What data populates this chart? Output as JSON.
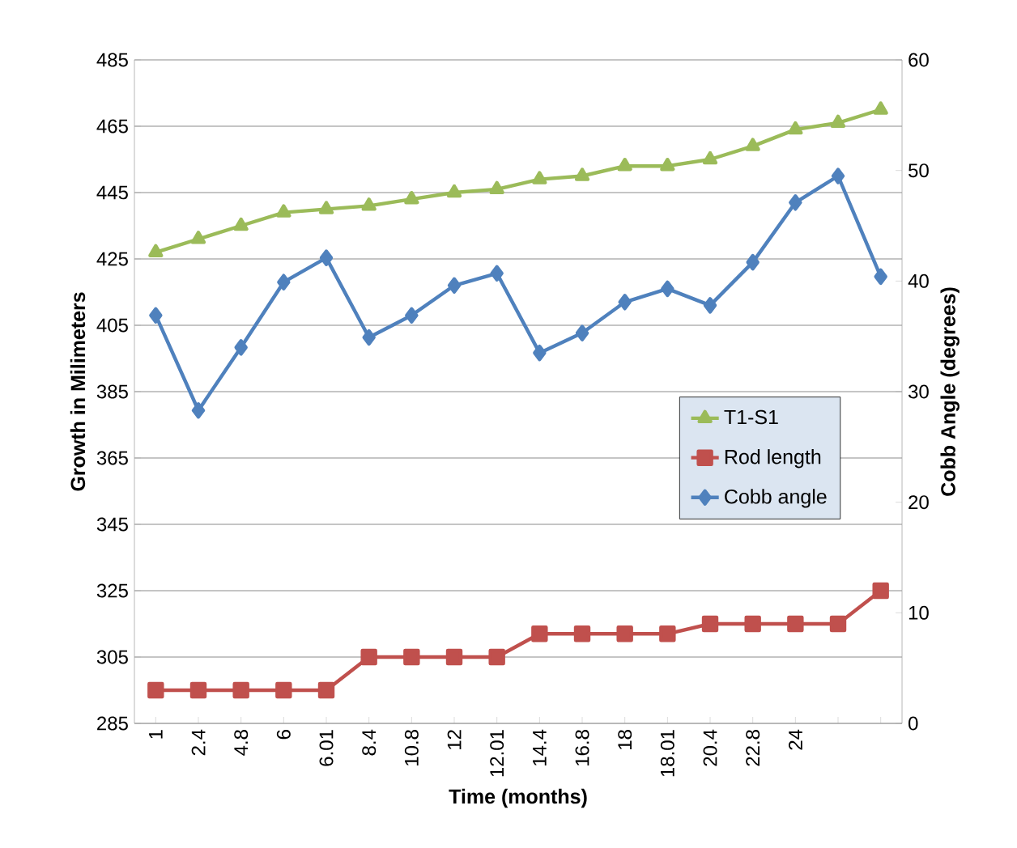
{
  "chart_data": {
    "type": "line",
    "xlabel": "Time (months)",
    "ylabel": "Growth in Milimeters",
    "y2label": "Cobb Angle (degrees)",
    "categories": [
      "1",
      "2.4",
      "4.8",
      "6",
      "6.01",
      "8.4",
      "10.8",
      "12",
      "12.01",
      "14.4",
      "16.8",
      "18",
      "18.01",
      "20.4",
      "22.8",
      "24",
      null,
      null
    ],
    "series": [
      {
        "name": "T1-S1",
        "color": "#9bbb59",
        "marker": "triangle",
        "values": [
          427,
          431,
          435,
          439,
          440,
          441,
          443,
          445,
          446,
          449,
          450,
          453,
          453,
          455,
          459,
          464,
          466,
          470
        ]
      },
      {
        "name": "Rod length",
        "color": "#c0504d",
        "marker": "square",
        "values": [
          295,
          295,
          295,
          295,
          295,
          305,
          305,
          305,
          305,
          312,
          312,
          312,
          312,
          315,
          315,
          315,
          315,
          325
        ]
      },
      {
        "name": "Cobb angle",
        "color": "#4f81bd",
        "marker": "diamond",
        "axis": "y2",
        "values": [
          36.9,
          28.3,
          34.0,
          39.9,
          42.1,
          34.9,
          36.9,
          39.6,
          40.7,
          33.5,
          35.3,
          38.1,
          39.3,
          37.8,
          41.7,
          47.1,
          49.5,
          40.4
        ]
      }
    ],
    "ylim": [
      285,
      485
    ],
    "yticks": [
      285,
      305,
      325,
      345,
      365,
      385,
      405,
      425,
      445,
      465,
      485
    ],
    "y2lim": [
      0,
      60
    ],
    "y2ticks": [
      0,
      10,
      20,
      30,
      40,
      50,
      60
    ],
    "grid": "y",
    "legend": "right"
  }
}
